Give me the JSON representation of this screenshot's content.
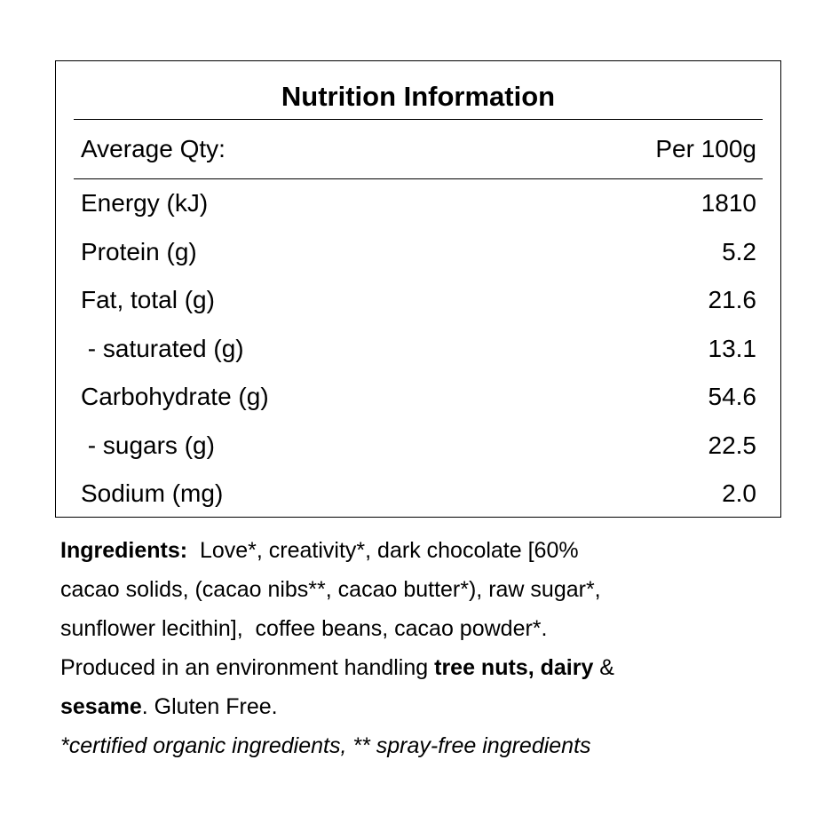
{
  "panel": {
    "title": "Nutrition Information",
    "header": [
      "Average Qty:",
      "Per 100g"
    ],
    "rows": [
      [
        "Energy (kJ)",
        "1810"
      ],
      [
        "Protein (g)",
        "5.2"
      ],
      [
        "Fat, total (g)",
        "21.6"
      ],
      [
        " - saturated (g)",
        "13.1"
      ],
      [
        "Carbohydrate (g)",
        "54.6"
      ],
      [
        " - sugars (g)",
        "22.5"
      ],
      [
        "Sodium (mg)",
        "2.0"
      ]
    ]
  },
  "ingredients": {
    "lines": [
      [
        {
          "text": "Ingredients:",
          "bold": true
        },
        {
          "text": "  Love*, creativity*, dark chocolate [60%",
          "bold": false
        }
      ],
      [
        {
          "text": "cacao solids, (cacao nibs**, cacao butter*), raw sugar*,",
          "bold": false
        }
      ],
      [
        {
          "text": "sunflower lecithin],  coffee beans, cacao powder*.",
          "bold": false
        }
      ],
      [
        {
          "text": "Produced in an environment handling ",
          "bold": false
        },
        {
          "text": "tree nuts, dairy",
          "bold": true
        },
        {
          "text": " &",
          "bold": false
        }
      ],
      [
        {
          "text": "sesame",
          "bold": true
        },
        {
          "text": ". Gluten Free.",
          "bold": false
        }
      ]
    ],
    "note": "*certified organic ingredients, ** spray-free ingredients"
  }
}
